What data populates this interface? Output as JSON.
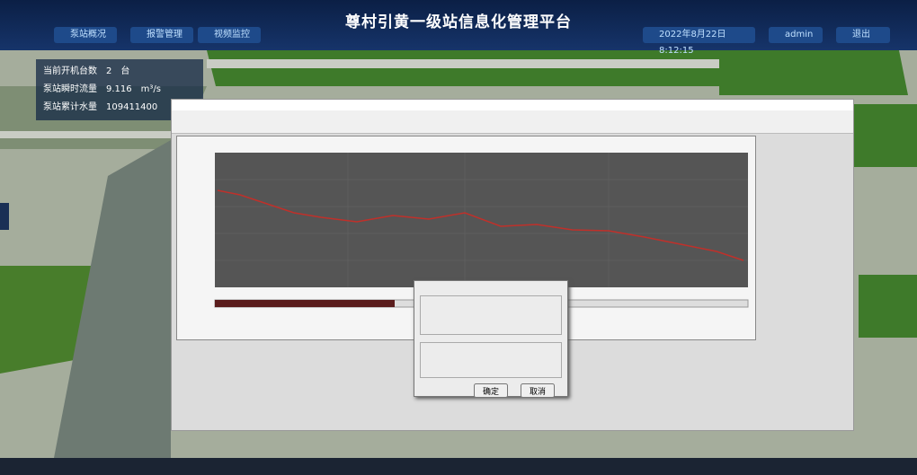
{
  "header": {
    "title": "尊村引黄一级站信息化管理平台",
    "nav": [
      "泵站概况",
      "报警管理",
      "视频监控"
    ],
    "datetime": "2022年8月22日 8:12:15",
    "user": "admin",
    "logout": "退出"
  },
  "info": {
    "rows": [
      {
        "label": "当前开机台数",
        "value": "2",
        "unit": "台"
      },
      {
        "label": "泵站瞬时流量",
        "value": "9.116",
        "unit": "m³/s"
      },
      {
        "label": "泵站累计水量",
        "value": "109411400",
        "unit": ""
      }
    ]
  },
  "dialog": {
    "ok": "确定",
    "cancel": "取消"
  }
}
